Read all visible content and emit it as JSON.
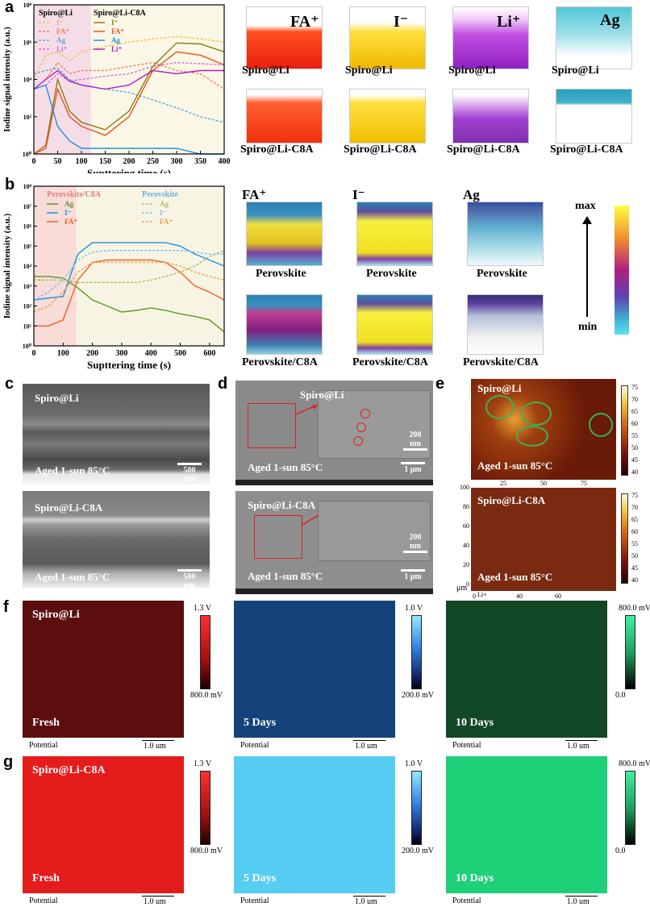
{
  "panels": {
    "a": "a",
    "b": "b",
    "c": "c",
    "d": "d",
    "e": "e",
    "f": "f",
    "g": "g"
  },
  "panel_a": {
    "legend_headers": [
      "Spiro@Li",
      "Spiro@Li-C8A"
    ],
    "legend_items": [
      "I⁻",
      "FA⁺",
      "Ag",
      "Li⁺"
    ],
    "cube_labels": [
      "FA⁺",
      "I⁻",
      "Li⁺",
      "Ag"
    ],
    "cube_captions_top": [
      "Spiro@Li",
      "Spiro@Li",
      "Spiro@Li",
      "Spiro@Li"
    ],
    "cube_captions_bottom": [
      "Spiro@Li-C8A",
      "Spiro@Li-C8A",
      "Spiro@Li-C8A",
      "Spiro@Li-C8A"
    ]
  },
  "panel_b": {
    "legend_headers": [
      "Perovskite/C8A",
      "Perovskite"
    ],
    "legend_items": [
      "Ag",
      "I⁻",
      "FA⁺"
    ],
    "cube_labels": [
      "FA⁺",
      "I⁻",
      "Ag"
    ],
    "cube_captions_top": [
      "Perovskite",
      "Perovskite",
      "Perovskite"
    ],
    "cube_captions_bottom": [
      "Perovskite/C8A",
      "Perovskite/C8A",
      "Perovskite/C8A"
    ],
    "scale_max": "max",
    "scale_min": "min"
  },
  "panel_c": {
    "top_title": "Spiro@Li",
    "bottom_title": "Spiro@Li-C8A",
    "condition": "Aged 1-sun 85°C",
    "scale": "500 nm"
  },
  "panel_d": {
    "top_title": "Spiro@Li",
    "bottom_title": "Spiro@Li-C8A",
    "condition": "Aged 1-sun 85°C",
    "scale_main": "1 μm",
    "scale_inset": "200 nm"
  },
  "panel_e": {
    "top_title": "Spiro@Li",
    "bottom_title": "Spiro@Li-C8A",
    "condition": "Aged 1-sun 85°C",
    "y_ticks": [
      "100",
      "80",
      "60",
      "40",
      "20",
      "0"
    ],
    "x_ticks_top": [
      "25",
      "50",
      "75"
    ],
    "x_ticks_bottom": [
      "0",
      "40",
      "60"
    ],
    "unit": "μm",
    "colorbar_ticks": [
      "75",
      "70",
      "65",
      "60",
      "55",
      "50",
      "45",
      "40"
    ],
    "axis_note": "Li+"
  },
  "panel_f": {
    "title": "Spiro@Li",
    "maps": [
      {
        "label": "Fresh",
        "cb_top": "1.3 V",
        "cb_bottom": "800.0 mV"
      },
      {
        "label": "5 Days",
        "cb_top": "1.0 V",
        "cb_bottom": "200.0 mV"
      },
      {
        "label": "10 Days",
        "cb_top": "800.0 mV",
        "cb_bottom": "0.0"
      }
    ],
    "potential": "Potential",
    "scale": "1.0 um"
  },
  "panel_g": {
    "title": "Spiro@Li-C8A",
    "maps": [
      {
        "label": "Fresh",
        "cb_top": "1.3 V",
        "cb_bottom": "800.0 mV"
      },
      {
        "label": "5 Days",
        "cb_top": "1.0 V",
        "cb_bottom": "200.0 mV"
      },
      {
        "label": "10 Days",
        "cb_top": "800.0 mV",
        "cb_bottom": "0.0"
      }
    ],
    "potential": "Potential",
    "scale": "1.0 um"
  },
  "chart_data": [
    {
      "type": "line",
      "title": "",
      "xlabel": "Supttering time (s)",
      "ylabel": "Iodine signal intensity (a.u.)",
      "xlim": [
        0,
        400
      ],
      "ylim": [
        1,
        100000000
      ],
      "yscale": "log",
      "x_ticks": [
        "0",
        "50",
        "100",
        "150",
        "200",
        "250",
        "300",
        "350",
        "400"
      ],
      "y_ticks": [
        "10⁰",
        "10²",
        "10⁴",
        "10⁶",
        "10⁸"
      ],
      "shaded_region": [
        0,
        120
      ],
      "series": [
        {
          "name": "I⁻",
          "group": "Spiro@Li",
          "color": "#e8c34a",
          "dash": true,
          "x": [
            0,
            25,
            50,
            75,
            100,
            150,
            200,
            250,
            300,
            350,
            400
          ],
          "y": [
            10000,
            200000,
            300000,
            100000,
            300000,
            600000,
            1000000,
            1500000,
            2000000,
            1500000,
            1000000
          ]
        },
        {
          "name": "FA⁺",
          "group": "Spiro@Li",
          "color": "#f08060",
          "dash": true,
          "x": [
            0,
            25,
            50,
            75,
            100,
            150,
            200,
            250,
            300,
            350,
            400
          ],
          "y": [
            3000,
            10000,
            80000,
            20000,
            30000,
            30000,
            50000,
            80000,
            30000,
            20000,
            3000
          ]
        },
        {
          "name": "Ag",
          "group": "Spiro@Li",
          "color": "#5aaad8",
          "dash": true,
          "x": [
            0,
            25,
            50,
            75,
            100,
            150,
            200,
            250,
            300,
            350,
            400
          ],
          "y": [
            20000,
            30000,
            40000,
            10000,
            5000,
            3000,
            2000,
            800,
            300,
            100,
            50
          ]
        },
        {
          "name": "Li⁺",
          "group": "Spiro@Li",
          "color": "#d070e0",
          "dash": true,
          "x": [
            0,
            25,
            50,
            75,
            100,
            150,
            200,
            250,
            300,
            350,
            400
          ],
          "y": [
            3000,
            5000,
            20000,
            8000,
            10000,
            15000,
            20000,
            50000,
            80000,
            70000,
            60000
          ]
        },
        {
          "name": "I⁻",
          "group": "Spiro@Li-C8A",
          "color": "#8a7a10",
          "dash": false,
          "x": [
            0,
            25,
            50,
            75,
            100,
            150,
            200,
            250,
            300,
            350,
            400
          ],
          "y": [
            1,
            3,
            10000,
            200,
            50,
            20,
            200,
            50000,
            900000,
            800000,
            300000
          ]
        },
        {
          "name": "FA⁺",
          "group": "Spiro@Li-C8A",
          "color": "#e85020",
          "dash": false,
          "x": [
            0,
            25,
            50,
            75,
            100,
            150,
            200,
            250,
            300,
            350,
            400
          ],
          "y": [
            1,
            2,
            3000,
            100,
            30,
            10,
            100,
            30000,
            300000,
            200000,
            60000
          ]
        },
        {
          "name": "Ag",
          "group": "Spiro@Li-C8A",
          "color": "#2090e0",
          "dash": false,
          "x": [
            0,
            25,
            50,
            75,
            100,
            150,
            200,
            250,
            300,
            350,
            400
          ],
          "y": [
            3000,
            5000,
            30,
            5,
            2,
            2,
            2,
            2,
            2,
            1,
            1
          ]
        },
        {
          "name": "Li⁺",
          "group": "Spiro@Li-C8A",
          "color": "#b020c0",
          "dash": false,
          "x": [
            0,
            25,
            50,
            75,
            100,
            150,
            200,
            250,
            300,
            350,
            400
          ],
          "y": [
            3000,
            10000,
            30000,
            8000,
            5000,
            3000,
            5000,
            30000,
            20000,
            30000,
            30000
          ]
        }
      ]
    },
    {
      "type": "line",
      "title": "",
      "xlabel": "Supttering time (s)",
      "ylabel": "Iodine signal intensity (a.u.)",
      "xlim": [
        0,
        650
      ],
      "ylim": [
        1,
        100000000
      ],
      "yscale": "log",
      "x_ticks": [
        "0",
        "100",
        "200",
        "300",
        "400",
        "500",
        "600"
      ],
      "y_ticks": [
        "10⁰",
        "10¹",
        "10²",
        "10³",
        "10⁴",
        "10⁵",
        "10⁶",
        "10⁷",
        "10⁸"
      ],
      "shaded_region": [
        0,
        145
      ],
      "series": [
        {
          "name": "Ag",
          "group": "Perovskite/C8A",
          "color": "#5a9a20",
          "dash": false,
          "x": [
            0,
            50,
            100,
            150,
            200,
            250,
            300,
            350,
            400,
            450,
            500,
            550,
            600,
            650
          ],
          "y": [
            3000,
            3000,
            2500,
            800,
            200,
            100,
            50,
            60,
            80,
            60,
            40,
            30,
            20,
            5
          ]
        },
        {
          "name": "I⁻",
          "group": "Perovskite/C8A",
          "color": "#2090e0",
          "dash": false,
          "x": [
            0,
            50,
            100,
            150,
            200,
            250,
            300,
            350,
            400,
            450,
            500,
            550,
            600,
            650
          ],
          "y": [
            200,
            250,
            300,
            40000,
            150000,
            150000,
            150000,
            150000,
            150000,
            150000,
            100000,
            40000,
            20000,
            10000
          ]
        },
        {
          "name": "FA⁺",
          "group": "Perovskite/C8A",
          "color": "#f06020",
          "dash": false,
          "x": [
            0,
            50,
            100,
            150,
            200,
            250,
            300,
            350,
            400,
            450,
            500,
            550,
            600,
            650
          ],
          "y": [
            10,
            10,
            20,
            2000,
            15000,
            20000,
            20000,
            20000,
            20000,
            15000,
            5000,
            1000,
            500,
            200
          ]
        },
        {
          "name": "Ag",
          "group": "Perovskite",
          "color": "#a0c060",
          "dash": true,
          "x": [
            0,
            50,
            100,
            150,
            200,
            250,
            300,
            350,
            400,
            450,
            500,
            550,
            600,
            650
          ],
          "y": [
            2000,
            2000,
            2000,
            1500,
            1500,
            1500,
            1500,
            1500,
            2000,
            3000,
            5000,
            10000,
            30000,
            60000
          ]
        },
        {
          "name": "I⁻",
          "group": "Perovskite",
          "color": "#80c0e8",
          "dash": true,
          "x": [
            0,
            50,
            100,
            150,
            200,
            250,
            300,
            350,
            400,
            450,
            500,
            550,
            600,
            650
          ],
          "y": [
            200,
            500,
            2000,
            20000,
            50000,
            60000,
            60000,
            60000,
            60000,
            60000,
            60000,
            50000,
            40000,
            40000
          ]
        },
        {
          "name": "FA⁺",
          "group": "Perovskite",
          "color": "#f0a050",
          "dash": true,
          "x": [
            0,
            50,
            100,
            150,
            200,
            250,
            300,
            350,
            400,
            450,
            500,
            550,
            600,
            650
          ],
          "y": [
            50,
            100,
            500,
            5000,
            15000,
            15000,
            15000,
            15000,
            15000,
            15000,
            10000,
            5000,
            3000,
            2000
          ]
        }
      ]
    }
  ]
}
